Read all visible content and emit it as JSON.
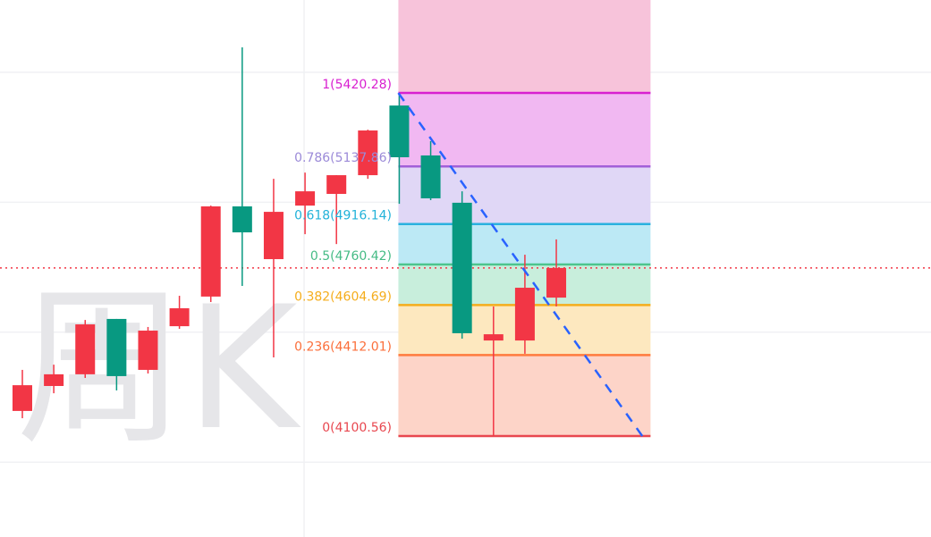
{
  "chart_data": {
    "type": "candlestick",
    "watermark": "周K",
    "ylim": [
      3712,
      5778
    ],
    "grid": true,
    "gridlines_y": [
      4000,
      4500,
      5000,
      5500
    ],
    "up_color": "#f23645",
    "down_color": "#089981",
    "last_price": 4747,
    "last_price_line_color": "#f23645",
    "candles": [
      {
        "o": 4197,
        "h": 4355,
        "l": 4169,
        "c": 4296
      },
      {
        "o": 4293,
        "h": 4375,
        "l": 4265,
        "c": 4338
      },
      {
        "o": 4338,
        "h": 4547,
        "l": 4324,
        "c": 4530
      },
      {
        "o": 4551,
        "h": 4551,
        "l": 4276,
        "c": 4331
      },
      {
        "o": 4355,
        "h": 4520,
        "l": 4341,
        "c": 4506
      },
      {
        "o": 4523,
        "h": 4640,
        "l": 4513,
        "c": 4592
      },
      {
        "o": 4637,
        "h": 4987,
        "l": 4616,
        "c": 4984
      },
      {
        "o": 4984,
        "h": 5596,
        "l": 4678,
        "c": 4884
      },
      {
        "o": 4781,
        "h": 5090,
        "l": 4403,
        "c": 4963
      },
      {
        "o": 4987,
        "h": 5114,
        "l": 4877,
        "c": 5042
      },
      {
        "o": 5032,
        "h": 5104,
        "l": 4839,
        "c": 5104
      },
      {
        "o": 5104,
        "h": 5279,
        "l": 5090,
        "c": 5276
      },
      {
        "o": 5372,
        "h": 5417,
        "l": 4994,
        "c": 5173
      },
      {
        "o": 5180,
        "h": 5235,
        "l": 5008,
        "c": 5015
      },
      {
        "o": 4998,
        "h": 5042,
        "l": 4475,
        "c": 4496
      },
      {
        "o": 4468,
        "h": 4599,
        "l": 4101,
        "c": 4492
      },
      {
        "o": 4468,
        "h": 4798,
        "l": 4417,
        "c": 4671
      },
      {
        "o": 4633,
        "h": 4857,
        "l": 4599,
        "c": 4747
      }
    ],
    "fibonacci": {
      "start_bar": 12,
      "end_bar": 20,
      "high": 5420.28,
      "low": 4100.56,
      "trend_line_color": "#2962ff",
      "top_fill": "#f7c3da",
      "levels": [
        {
          "label": "1(5420.28)",
          "ratio": 1,
          "price": 5420.28,
          "color": "#d81fd0",
          "label_color": "#d81fd0",
          "fill": "#f1b8f2"
        },
        {
          "label": "0.786(5137.86)",
          "ratio": 0.786,
          "price": 5137.86,
          "color": "#a25fd8",
          "label_color": "#9b8ad8",
          "fill": "#e0d7f6"
        },
        {
          "label": "0.618(4916.14)",
          "ratio": 0.618,
          "price": 4916.14,
          "color": "#2ab1de",
          "label_color": "#22b2d9",
          "fill": "#bce9f5"
        },
        {
          "label": "0.5(4760.42)",
          "ratio": 0.5,
          "price": 4760.42,
          "color": "#4cc58e",
          "label_color": "#45bb85",
          "fill": "#c8eedc"
        },
        {
          "label": "0.382(4604.69)",
          "ratio": 0.382,
          "price": 4604.69,
          "color": "#f5ad1c",
          "label_color": "#f5ad1c",
          "fill": "#fde8bf"
        },
        {
          "label": "0.236(4412.01)",
          "ratio": 0.236,
          "price": 4412.01,
          "color": "#ff7a3d",
          "label_color": "#fb6f3b",
          "fill": "#fdd4c8"
        },
        {
          "label": "0(4100.56)",
          "ratio": 0,
          "price": 4100.56,
          "color": "#e8474f",
          "label_color": "#e8474f",
          "fill": null
        }
      ]
    }
  }
}
